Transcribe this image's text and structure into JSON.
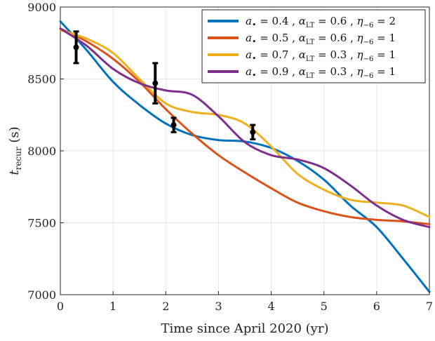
{
  "chart_data": {
    "type": "line",
    "xlabel": "Time since April 2020 (yr)",
    "ylabel": "t_recur (s)",
    "ylabel_main": "t",
    "ylabel_sub": "recur",
    "ylabel_unit": " (s)",
    "xlim": [
      0,
      7
    ],
    "ylim": [
      7000,
      9000
    ],
    "xticks": [
      "0",
      "1",
      "2",
      "3",
      "4",
      "5",
      "6",
      "7"
    ],
    "yticks": [
      "7000",
      "7500",
      "8000",
      "8500",
      "9000"
    ],
    "grid": true,
    "legend_position": "top-right",
    "x": [
      0,
      0.5,
      1,
      1.5,
      2,
      2.5,
      3,
      3.5,
      4,
      4.5,
      5,
      5.5,
      6,
      6.5,
      7
    ],
    "series": [
      {
        "name": "a• = 0.4 , αLT = 0.6 , η−6 = 2",
        "color": "#0072BD",
        "values": [
          8900,
          8700,
          8480,
          8320,
          8190,
          8110,
          8075,
          8065,
          8020,
          7930,
          7800,
          7620,
          7470,
          7250,
          7020
        ]
      },
      {
        "name": "a• = 0.5 , αLT = 0.6 , η−6 = 1",
        "color": "#D95319",
        "values": [
          8850,
          8760,
          8640,
          8480,
          8290,
          8120,
          7970,
          7850,
          7740,
          7640,
          7580,
          7540,
          7520,
          7510,
          7490
        ]
      },
      {
        "name": "a• = 0.7 , αLT = 0.3 , η−6 = 1",
        "color": "#EDB120",
        "values": [
          8840,
          8780,
          8680,
          8500,
          8330,
          8270,
          8250,
          8190,
          8030,
          7840,
          7730,
          7660,
          7640,
          7620,
          7540
        ]
      },
      {
        "name": "a• = 0.9 , αLT = 0.3 , η−6 = 1",
        "color": "#7E2F8E",
        "values": [
          8850,
          8730,
          8570,
          8470,
          8420,
          8390,
          8240,
          8060,
          7970,
          7940,
          7880,
          7760,
          7620,
          7520,
          7470
        ]
      }
    ],
    "observations": {
      "color": "#000000",
      "points": [
        {
          "x": 0.3,
          "y": 8720,
          "ylow": 8610,
          "yhigh": 8830
        },
        {
          "x": 1.8,
          "y": 8470,
          "ylow": 8330,
          "yhigh": 8610
        },
        {
          "x": 2.15,
          "y": 8180,
          "ylow": 8130,
          "yhigh": 8230
        },
        {
          "x": 3.65,
          "y": 8130,
          "ylow": 8080,
          "yhigh": 8180
        }
      ]
    }
  }
}
